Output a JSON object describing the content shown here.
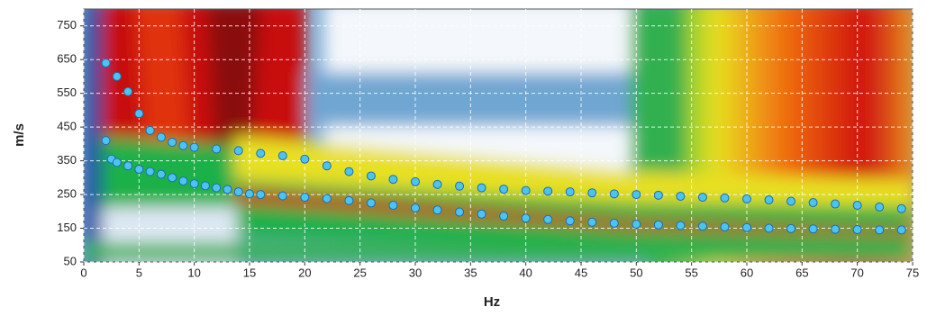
{
  "chart_data": {
    "type": "scatter",
    "x_label": "Hz",
    "y_label": "m/s",
    "xlim": [
      0,
      75
    ],
    "xticks": [
      0,
      5,
      10,
      15,
      20,
      25,
      30,
      35,
      40,
      45,
      50,
      55,
      60,
      65,
      70,
      75
    ],
    "ylim": [
      50,
      800
    ],
    "yticks": [
      50,
      150,
      250,
      350,
      450,
      550,
      650,
      750
    ],
    "grid": true,
    "series": [
      {
        "color": "#4cc3f0",
        "x": [
          2,
          3,
          4,
          5,
          6,
          7,
          8,
          9,
          10,
          12,
          14,
          16,
          18,
          20,
          22,
          24,
          26,
          28,
          30,
          32,
          34,
          36,
          38,
          40,
          42,
          44,
          46,
          48,
          50,
          52,
          54,
          56,
          58,
          60,
          62,
          64,
          66,
          68,
          70,
          72,
          74
        ],
        "values": [
          640,
          600,
          555,
          490,
          440,
          420,
          405,
          395,
          390,
          385,
          380,
          372,
          365,
          355,
          335,
          318,
          305,
          295,
          288,
          280,
          275,
          270,
          266,
          262,
          260,
          258,
          255,
          252,
          250,
          248,
          245,
          242,
          240,
          237,
          234,
          230,
          226,
          222,
          218,
          213,
          208
        ]
      },
      {
        "color": "#4cc3f0",
        "x": [
          2,
          2.5,
          3,
          4,
          5,
          6,
          7,
          8,
          9,
          10,
          11,
          12,
          13,
          14,
          15,
          16,
          18,
          20,
          22,
          24,
          26,
          28,
          30,
          32,
          34,
          36,
          38,
          40,
          42,
          44,
          46,
          48,
          50,
          52,
          54,
          56,
          58,
          60,
          62,
          64,
          66,
          68,
          70,
          72,
          74
        ],
        "values": [
          410,
          355,
          345,
          335,
          325,
          318,
          310,
          300,
          290,
          282,
          276,
          270,
          265,
          258,
          252,
          250,
          246,
          242,
          238,
          232,
          225,
          218,
          210,
          204,
          198,
          192,
          186,
          180,
          176,
          172,
          168,
          165,
          162,
          160,
          158,
          156,
          154,
          152,
          150,
          149,
          148,
          147,
          146,
          145,
          145
        ]
      }
    ]
  }
}
